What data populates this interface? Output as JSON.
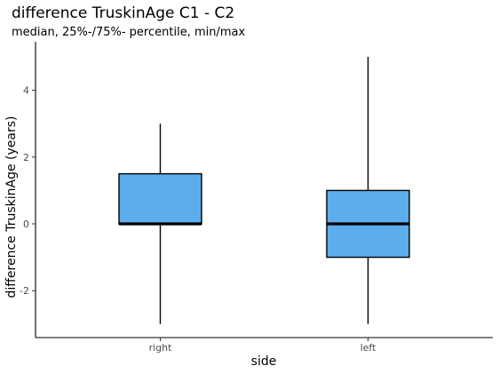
{
  "chart_data": {
    "type": "boxplot",
    "title": "difference TruskinAge C1 - C2",
    "subtitle": "median, 25%-/75%- percentile, min/max",
    "xlabel": "side",
    "ylabel": "difference TruskinAge (years)",
    "categories": [
      "right",
      "left"
    ],
    "boxes": [
      {
        "category": "right",
        "min": -3,
        "q1": 0,
        "median": 0,
        "q3": 1.5,
        "max": 3
      },
      {
        "category": "left",
        "min": -3,
        "q1": -1,
        "median": 0,
        "q3": 1,
        "max": 5
      }
    ],
    "ylim": [
      -3.4,
      5.3
    ],
    "yticks": [
      -2,
      0,
      2,
      4
    ],
    "grid": false,
    "box_color": "#5DADEC"
  }
}
